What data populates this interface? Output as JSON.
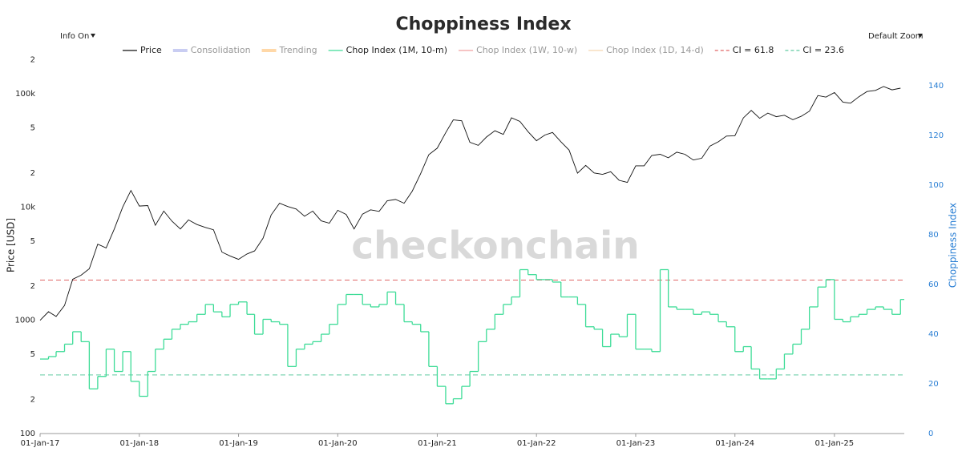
{
  "chart_data": {
    "type": "line",
    "title": "Choppiness Index",
    "controls": {
      "info": "Info On",
      "zoom": "Default Zoom"
    },
    "watermark": "checkonchain",
    "y_label": "Price [USD]",
    "y2_label": "Choppiness Index",
    "log_y": true,
    "grid": false,
    "x": [
      "2017-01-01",
      "2017-02-01",
      "2017-03-01",
      "2017-04-01",
      "2017-05-01",
      "2017-06-01",
      "2017-07-01",
      "2017-08-01",
      "2017-09-01",
      "2017-10-01",
      "2017-11-01",
      "2017-12-01",
      "2018-01-01",
      "2018-02-01",
      "2018-03-01",
      "2018-04-01",
      "2018-05-01",
      "2018-06-01",
      "2018-07-01",
      "2018-08-01",
      "2018-09-01",
      "2018-10-01",
      "2018-11-01",
      "2018-12-01",
      "2019-01-01",
      "2019-02-01",
      "2019-03-01",
      "2019-04-01",
      "2019-05-01",
      "2019-06-01",
      "2019-07-01",
      "2019-08-01",
      "2019-09-01",
      "2019-10-01",
      "2019-11-01",
      "2019-12-01",
      "2020-01-01",
      "2020-02-01",
      "2020-03-01",
      "2020-04-01",
      "2020-05-01",
      "2020-06-01",
      "2020-07-01",
      "2020-08-01",
      "2020-09-01",
      "2020-10-01",
      "2020-11-01",
      "2020-12-01",
      "2021-01-01",
      "2021-02-01",
      "2021-03-01",
      "2021-04-01",
      "2021-05-01",
      "2021-06-01",
      "2021-07-01",
      "2021-08-01",
      "2021-09-01",
      "2021-10-01",
      "2021-11-01",
      "2021-12-01",
      "2022-01-01",
      "2022-02-01",
      "2022-03-01",
      "2022-04-01",
      "2022-05-01",
      "2022-06-01",
      "2022-07-01",
      "2022-08-01",
      "2022-09-01",
      "2022-10-01",
      "2022-11-01",
      "2022-12-01",
      "2023-01-01",
      "2023-02-01",
      "2023-03-01",
      "2023-04-01",
      "2023-05-01",
      "2023-06-01",
      "2023-07-01",
      "2023-08-01",
      "2023-09-01",
      "2023-10-01",
      "2023-11-01",
      "2023-12-01",
      "2024-01-01",
      "2024-02-01",
      "2024-03-01",
      "2024-04-01",
      "2024-05-01",
      "2024-06-01",
      "2024-07-01",
      "2024-08-01",
      "2024-09-01",
      "2024-10-01",
      "2024-11-01",
      "2024-12-01",
      "2025-01-01",
      "2025-02-01",
      "2025-03-01",
      "2025-04-01",
      "2025-05-01",
      "2025-06-01",
      "2025-07-01",
      "2025-08-01",
      "2025-09-01"
    ],
    "series": [
      {
        "name": "Price",
        "color": "#111111",
        "step": false,
        "values": [
          1000,
          1190,
          1080,
          1350,
          2300,
          2500,
          2850,
          4700,
          4350,
          6400,
          10000,
          14000,
          10200,
          10300,
          6900,
          9200,
          7500,
          6400,
          7700,
          7000,
          6600,
          6300,
          4000,
          3700,
          3450,
          3850,
          4100,
          5300,
          8500,
          10800,
          10100,
          9600,
          8300,
          9200,
          7550,
          7200,
          9350,
          8600,
          6400,
          8650,
          9450,
          9150,
          11350,
          11650,
          10800,
          13800,
          19700,
          29000,
          33100,
          45200,
          58800,
          57700,
          37300,
          35000,
          41500,
          47100,
          43800,
          61300,
          57000,
          46300,
          38500,
          43200,
          45500,
          37700,
          31800,
          19900,
          23300,
          20000,
          19400,
          20500,
          17200,
          16500,
          23100,
          23100,
          28500,
          29200,
          27200,
          30500,
          29200,
          26000,
          27000,
          34500,
          37700,
          42300,
          42600,
          61200,
          71300,
          60700,
          67500,
          62700,
          64600,
          59000,
          63300,
          70200,
          96400,
          93400,
          102400,
          84400,
          82500,
          94200,
          104600,
          107100,
          115800,
          108300,
          112000
        ]
      },
      {
        "name": "Chop Index (1M, 10-m)",
        "color": "#3ddc97",
        "axis": "y2",
        "step": true,
        "values": [
          30,
          31,
          33,
          36,
          41,
          37,
          18,
          23,
          34,
          25,
          33,
          21,
          15,
          25,
          34,
          38,
          42,
          44,
          45,
          48,
          52,
          49,
          47,
          52,
          53,
          48,
          40,
          46,
          45,
          44,
          27,
          34,
          36,
          37,
          40,
          44,
          52,
          56,
          56,
          52,
          51,
          52,
          57,
          52,
          45,
          44,
          41,
          27,
          19,
          12,
          14,
          19,
          25,
          37,
          42,
          48,
          52,
          55,
          66,
          64,
          62,
          62,
          61,
          55,
          55,
          52,
          43,
          42,
          35,
          40,
          39,
          48,
          34,
          34,
          33,
          66,
          51,
          50,
          50,
          48,
          49,
          48,
          45,
          43,
          33,
          35,
          26,
          22,
          22,
          26,
          32,
          36,
          42,
          51,
          59,
          62,
          46,
          45,
          47,
          48,
          50,
          51,
          50,
          48,
          54
        ]
      }
    ],
    "hidden_series": [
      {
        "name": "Consolidation",
        "color": "#c9cdf2"
      },
      {
        "name": "Trending",
        "color": "#ffd8a8"
      },
      {
        "name": "Chop Index (1W, 10-w)",
        "color": "#f0a0a0"
      },
      {
        "name": "Chop Index (1D, 14-d)",
        "color": "#f5d6b0"
      }
    ],
    "reference_lines": [
      {
        "name": "CI = 61.8",
        "value": 61.8,
        "color": "#e06666",
        "axis": "y2"
      },
      {
        "name": "CI = 23.6",
        "value": 23.6,
        "color": "#5fc9a0",
        "axis": "y2"
      }
    ],
    "xlim": [
      "2017-01-01",
      "2025-09-15"
    ],
    "xticks": [
      {
        "value": "2017-01-01",
        "label": "01-Jan-17"
      },
      {
        "value": "2018-01-01",
        "label": "01-Jan-18"
      },
      {
        "value": "2019-01-01",
        "label": "01-Jan-19"
      },
      {
        "value": "2020-01-01",
        "label": "01-Jan-20"
      },
      {
        "value": "2021-01-01",
        "label": "01-Jan-21"
      },
      {
        "value": "2022-01-01",
        "label": "01-Jan-22"
      },
      {
        "value": "2023-01-01",
        "label": "01-Jan-23"
      },
      {
        "value": "2024-01-01",
        "label": "01-Jan-24"
      },
      {
        "value": "2025-01-01",
        "label": "01-Jan-25"
      }
    ],
    "ylim": [
      100,
      215000
    ],
    "yticks": [
      100,
      {
        "value": 200,
        "label": "2"
      },
      {
        "value": 500,
        "label": "5"
      },
      1000,
      {
        "value": 2000,
        "label": "2"
      },
      {
        "value": 5000,
        "label": "5"
      },
      {
        "value": 10000,
        "label": "10k"
      },
      {
        "value": 20000,
        "label": "2"
      },
      {
        "value": 50000,
        "label": "5"
      },
      {
        "value": 100000,
        "label": "100k"
      },
      {
        "value": 200000,
        "label": "2"
      }
    ],
    "y2lim": [
      0,
      152
    ],
    "y2ticks": [
      0,
      20,
      40,
      60,
      80,
      100,
      120,
      140
    ],
    "y2_color": "#2a7fd4"
  }
}
